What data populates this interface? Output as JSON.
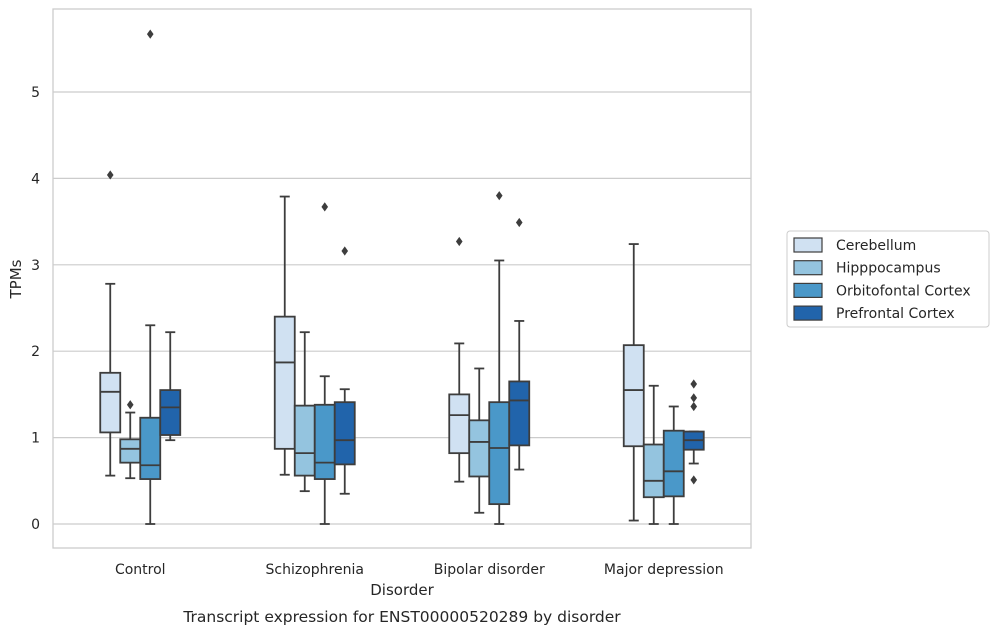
{
  "chart_data": {
    "type": "box",
    "title": "",
    "caption": "Transcript expression for ENST00000520289 by disorder",
    "xlabel": "Disorder",
    "ylabel": "TPMs",
    "ylim": [
      -0.28,
      5.98
    ],
    "yticks": [
      0,
      1,
      2,
      3,
      4,
      5
    ],
    "grid": "horizontal",
    "legend_position": "right",
    "categories": [
      "Control",
      "Schizophrenia",
      "Bipolar disorder",
      "Major depression"
    ],
    "series": [
      {
        "name": "Cerebellum",
        "color": "#d0e1f2",
        "boxes": [
          {
            "whislo": 0.56,
            "q1": 1.06,
            "med": 1.53,
            "q3": 1.75,
            "whishi": 2.78,
            "fliers": [
              4.04
            ]
          },
          {
            "whislo": 0.57,
            "q1": 0.87,
            "med": 1.87,
            "q3": 2.4,
            "whishi": 3.79,
            "fliers": []
          },
          {
            "whislo": 0.49,
            "q1": 0.82,
            "med": 1.26,
            "q3": 1.5,
            "whishi": 2.09,
            "fliers": [
              3.27
            ]
          },
          {
            "whislo": 0.04,
            "q1": 0.9,
            "med": 1.55,
            "q3": 2.07,
            "whishi": 3.24,
            "fliers": []
          }
        ]
      },
      {
        "name": "Hipppocampus",
        "color": "#94c4df",
        "boxes": [
          {
            "whislo": 0.53,
            "q1": 0.71,
            "med": 0.87,
            "q3": 0.98,
            "whishi": 1.29,
            "fliers": [
              1.38
            ]
          },
          {
            "whislo": 0.38,
            "q1": 0.56,
            "med": 0.82,
            "q3": 1.37,
            "whishi": 2.22,
            "fliers": []
          },
          {
            "whislo": 0.13,
            "q1": 0.55,
            "med": 0.95,
            "q3": 1.2,
            "whishi": 1.8,
            "fliers": []
          },
          {
            "whislo": 0.0,
            "q1": 0.31,
            "med": 0.5,
            "q3": 0.92,
            "whishi": 1.6,
            "fliers": []
          }
        ]
      },
      {
        "name": "Orbitofontal Cortex",
        "color": "#4a98c9",
        "boxes": [
          {
            "whislo": 0.0,
            "q1": 0.52,
            "med": 0.68,
            "q3": 1.23,
            "whishi": 2.3,
            "fliers": [
              5.67
            ]
          },
          {
            "whislo": 0.0,
            "q1": 0.52,
            "med": 0.71,
            "q3": 1.38,
            "whishi": 1.71,
            "fliers": [
              3.67
            ]
          },
          {
            "whislo": 0.0,
            "q1": 0.23,
            "med": 0.88,
            "q3": 1.41,
            "whishi": 3.05,
            "fliers": [
              3.8
            ]
          },
          {
            "whislo": 0.0,
            "q1": 0.32,
            "med": 0.61,
            "q3": 1.08,
            "whishi": 1.36,
            "fliers": []
          }
        ]
      },
      {
        "name": "Prefrontal Cortex",
        "color": "#2164ab",
        "boxes": [
          {
            "whislo": 0.97,
            "q1": 1.03,
            "med": 1.35,
            "q3": 1.55,
            "whishi": 2.22,
            "fliers": []
          },
          {
            "whislo": 0.35,
            "q1": 0.69,
            "med": 0.97,
            "q3": 1.41,
            "whishi": 1.56,
            "fliers": [
              3.16
            ]
          },
          {
            "whislo": 0.63,
            "q1": 0.91,
            "med": 1.43,
            "q3": 1.65,
            "whishi": 2.35,
            "fliers": [
              3.49
            ]
          },
          {
            "whislo": 0.7,
            "q1": 0.86,
            "med": 0.97,
            "q3": 1.07,
            "whishi": 1.07,
            "fliers": [
              1.62,
              1.46,
              1.36,
              0.51
            ]
          }
        ]
      }
    ]
  }
}
